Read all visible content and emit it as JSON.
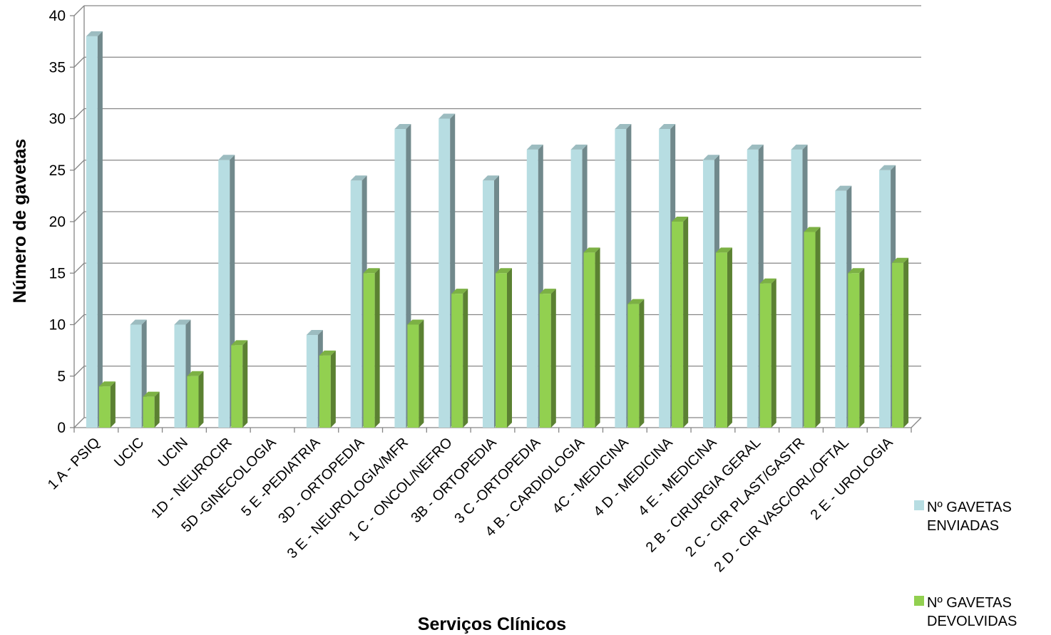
{
  "chart_data": {
    "type": "bar",
    "title": "",
    "xlabel": "Serviços Clínicos",
    "ylabel": "Número de gavetas",
    "ylim": [
      0,
      40
    ],
    "yticks": [
      "0",
      "5",
      "10",
      "15",
      "20",
      "25",
      "30",
      "35",
      "40"
    ],
    "grid": true,
    "legend_position": "right",
    "categories": [
      "1 A - PSIQ",
      "UCIC",
      "UCIN",
      "1D - NEUROCIR",
      "5D -GINECOLOGIA",
      "5 E -PEDIATRIA",
      "3D - ORTOPEDIA",
      "3 E - NEUROLOGIA/MFR",
      "1 C - ONCOL/NEFRO",
      "3B - ORTOPEDIA",
      "3 C -ORTOPEDIA",
      "4 B - CARDIOLOGIA",
      "4C - MEDICINA",
      "4 D - MEDICINA",
      "4 E - MEDICINA",
      "2 B - CIRURGIA GERAL",
      "2 C - CIR PLAST/GASTR",
      "2 D - CIR VASC/ORL/OFTAL",
      "2 E - UROLOGIA"
    ],
    "series": [
      {
        "name": "Nº GAVETAS ENVIADAS",
        "legend_lines": [
          "Nº GAVETAS",
          "ENVIADAS"
        ],
        "color": "#b7dde2",
        "values": [
          38,
          10,
          10,
          26,
          0,
          9,
          24,
          29,
          30,
          24,
          27,
          27,
          29,
          29,
          26,
          27,
          27,
          23,
          25
        ]
      },
      {
        "name": "Nº GAVETAS DEVOLVIDAS",
        "legend_lines": [
          "Nº GAVETAS",
          "DEVOLVIDAS"
        ],
        "color": "#92d050",
        "values": [
          4,
          3,
          5,
          8,
          0,
          7,
          15,
          10,
          13,
          15,
          13,
          17,
          12,
          20,
          17,
          14,
          19,
          15,
          16
        ]
      }
    ]
  }
}
